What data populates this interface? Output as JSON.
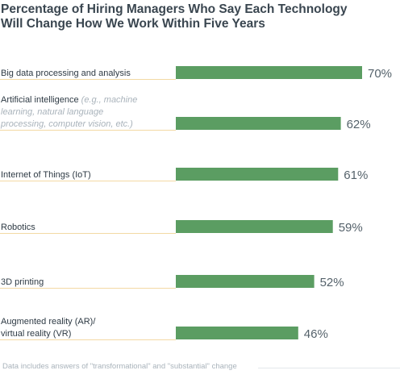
{
  "chart_data": {
    "type": "bar",
    "orientation": "horizontal",
    "title": "Percentage of Hiring Managers Who Say Each Technology Will Change How We Work Within Five Years",
    "title_lines": [
      "Percentage of Hiring Managers Who Say Each Technology",
      "Will Change How We Work Within Five Years"
    ],
    "categories": [
      "Big data processing and analysis",
      "Artificial intelligence (e.g., machine learning, natural language processing, computer vision, etc.)",
      "Internet of Things (IoT)",
      "Robotics",
      "3D printing",
      "Augmented reality (AR)/ virtual reality (VR)"
    ],
    "category_label_lines": [
      [
        {
          "text": "Big data processing and analysis",
          "note": ""
        }
      ],
      [
        {
          "text": "Artificial intelligence ",
          "note": "(e.g., machine"
        },
        {
          "text": "",
          "note": "learning, natural language"
        },
        {
          "text": "",
          "note": "processing, computer vision, etc.)"
        }
      ],
      [
        {
          "text": "Internet of Things (IoT)",
          "note": ""
        }
      ],
      [
        {
          "text": "Robotics",
          "note": ""
        }
      ],
      [
        {
          "text": "3D printing",
          "note": ""
        }
      ],
      [
        {
          "text": "Augmented reality (AR)/",
          "note": ""
        },
        {
          "text": "virtual reality (VR)",
          "note": ""
        }
      ]
    ],
    "values": [
      70,
      62,
      61,
      59,
      52,
      46
    ],
    "value_labels": [
      "70%",
      "62%",
      "61%",
      "59%",
      "52%",
      "46%"
    ],
    "unit": "%",
    "xlim": [
      0,
      70
    ],
    "grid": false,
    "legend": "none",
    "colors": {
      "bar": "#5b9d62",
      "separator": "#f3d9a4",
      "text": "#2e3a44",
      "note": "#a9b3bb",
      "value": "#55626b"
    },
    "footnote": "Data includes answers of \"transformational\" and \"substantial\" change"
  }
}
